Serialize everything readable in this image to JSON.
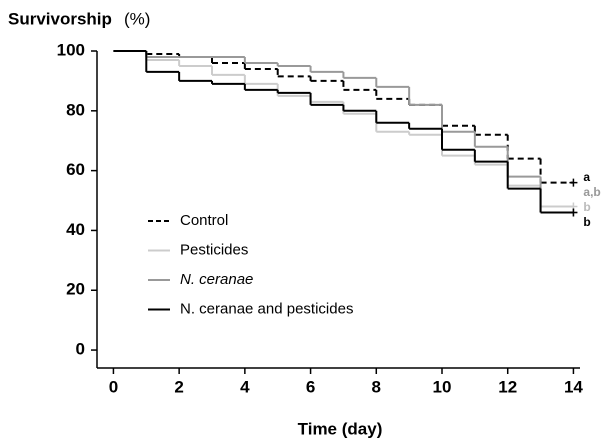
{
  "chart_data": {
    "type": "step",
    "ylabel": "Survivorship",
    "ylabel_unit": "(%)",
    "xlabel": "Time (day)",
    "xlim": [
      -0.5,
      14.2
    ],
    "ylim": [
      -6,
      100
    ],
    "xticks": [
      0,
      2,
      4,
      6,
      8,
      10,
      12,
      14
    ],
    "yticks": [
      0,
      20,
      40,
      60,
      80,
      100
    ],
    "x": [
      0,
      1,
      2,
      3,
      4,
      5,
      6,
      7,
      8,
      9,
      10,
      11,
      12,
      13,
      14
    ],
    "series": [
      {
        "name": "Control",
        "color": "#000000",
        "dash": true,
        "values": [
          100,
          99,
          98,
          96,
          94,
          91.5,
          90,
          87,
          84,
          82,
          75,
          72,
          64,
          56,
          56
        ]
      },
      {
        "name": "Pesticides",
        "color": "#cccccc",
        "dash": false,
        "values": [
          100,
          97,
          95,
          92,
          89,
          85,
          83,
          79,
          73,
          72,
          65,
          62,
          55,
          48,
          48
        ]
      },
      {
        "name": "N. ceranae",
        "color": "#999999",
        "dash": false,
        "values": [
          100,
          98,
          98,
          98,
          96,
          95,
          93,
          91,
          88,
          82,
          73,
          68,
          58,
          46,
          46
        ]
      },
      {
        "name": "N. ceranae and pesticides",
        "color": "#000000",
        "dash": false,
        "values": [
          100,
          93,
          90,
          89,
          87,
          86,
          82,
          80,
          76,
          74,
          67,
          63,
          54,
          46,
          46
        ]
      }
    ],
    "annotations": [
      {
        "text": "a",
        "color": "#000000"
      },
      {
        "text": "a,b",
        "color": "#999999"
      },
      {
        "text": "b",
        "color": "#bbbbbb"
      },
      {
        "text": "b",
        "color": "#000000"
      }
    ]
  }
}
